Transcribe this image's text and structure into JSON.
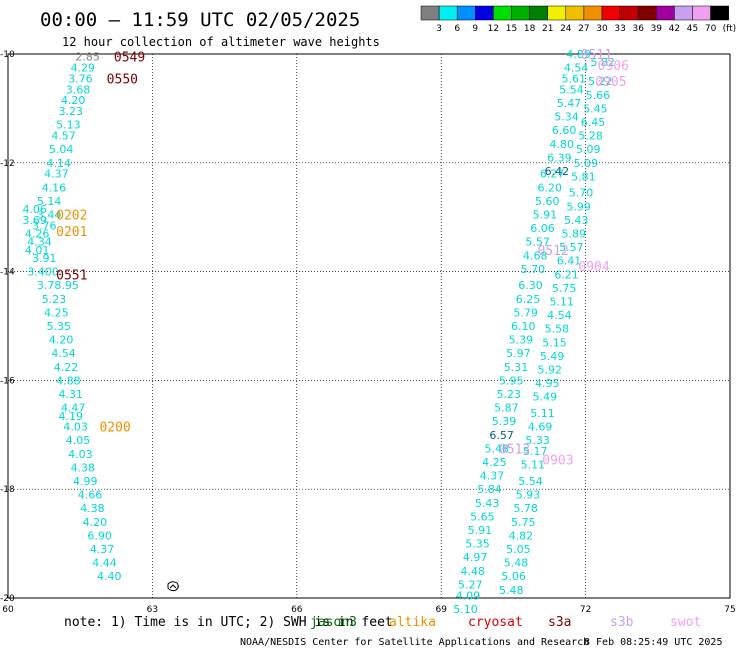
{
  "header": {
    "title": "00:00 — 11:59 UTC 02/05/2025",
    "subtitle": "12 hour collection of altimeter wave heights"
  },
  "colorbar": {
    "unit": "(ft)",
    "colors": [
      "#808080",
      "#00f0f0",
      "#0090ff",
      "#0000e0",
      "#00e000",
      "#00b000",
      "#008000",
      "#f0f000",
      "#f0c000",
      "#f09000",
      "#f00000",
      "#c00000",
      "#800000",
      "#a000a0",
      "#c8a0f0",
      "#f0a0f0",
      "#000000"
    ],
    "labels": [
      "3",
      "6",
      "9",
      "12",
      "15",
      "18",
      "21",
      "24",
      "27",
      "30",
      "33",
      "36",
      "39",
      "42",
      "45",
      "70"
    ]
  },
  "axes": {
    "x_ticks": [
      60,
      63,
      66,
      69,
      72,
      75
    ],
    "y_ticks": [
      -10,
      -12,
      -14,
      -16,
      -18,
      -20
    ],
    "xlim": [
      60,
      75
    ],
    "ylim": [
      -20,
      -10
    ]
  },
  "footer": {
    "note": "note:  1) Time is in UTC;  2) SWH is in feet",
    "credit": "NOAA/NESDIS Center for Satellite Applications and Research",
    "timestamp": "8 Feb 08:25:49 UTC 2025"
  },
  "legend": [
    {
      "name": "jason3",
      "color": "#007000"
    },
    {
      "name": "altika",
      "color": "#f09000"
    },
    {
      "name": "cryosat",
      "color": "#e00000"
    },
    {
      "name": "s3a",
      "color": "#800000"
    },
    {
      "name": "s3b",
      "color": "#c8a0f0"
    },
    {
      "name": "swot",
      "color": "#f0a0f0"
    }
  ],
  "chart_data": {
    "type": "scatter",
    "color_cyan": "#00d8d8",
    "x_range": [
      60,
      75
    ],
    "y_range": [
      -20,
      -10
    ],
    "tracks": [
      {
        "name": "west-track",
        "points": [
          {
            "lon": 61.4,
            "lat": -10.05,
            "value": "2.85",
            "color": "#808080"
          },
          {
            "lon": 61.3,
            "lat": -10.25,
            "value": "4.29"
          },
          {
            "lon": 61.25,
            "lat": -10.45,
            "value": "3.76"
          },
          {
            "lon": 61.2,
            "lat": -10.65,
            "value": "3.68"
          },
          {
            "lon": 61.1,
            "lat": -10.85,
            "value": "4.20"
          },
          {
            "lon": 61.05,
            "lat": -11.05,
            "value": "3.23"
          },
          {
            "lon": 61.0,
            "lat": -11.3,
            "value": "5.13"
          },
          {
            "lon": 60.9,
            "lat": -11.5,
            "value": "4.57"
          },
          {
            "lon": 60.85,
            "lat": -11.75,
            "value": "5.04"
          },
          {
            "lon": 60.8,
            "lat": -12.0,
            "value": "4.14"
          },
          {
            "lon": 60.75,
            "lat": -12.2,
            "value": "4.37"
          },
          {
            "lon": 60.7,
            "lat": -12.45,
            "value": "4.16"
          },
          {
            "lon": 60.6,
            "lat": -12.7,
            "value": "5.14"
          },
          {
            "lon": 60.3,
            "lat": -12.85,
            "value": "4.06"
          },
          {
            "lon": 60.6,
            "lat": -12.95,
            "value": "3.44"
          },
          {
            "lon": 60.3,
            "lat": -13.05,
            "value": "3.69"
          },
          {
            "lon": 60.5,
            "lat": -13.15,
            "value": "3.76"
          },
          {
            "lon": 60.35,
            "lat": -13.3,
            "value": "4.26"
          },
          {
            "lon": 60.4,
            "lat": -13.45,
            "value": "4.34"
          },
          {
            "lon": 60.35,
            "lat": -13.6,
            "value": "4.01"
          },
          {
            "lon": 60.5,
            "lat": -13.75,
            "value": "3.91"
          },
          {
            "lon": 60.4,
            "lat": -14.0,
            "value": "3.400"
          },
          {
            "lon": 60.6,
            "lat": -14.25,
            "value": "3.78.95"
          },
          {
            "lon": 60.7,
            "lat": -14.5,
            "value": "5.23"
          },
          {
            "lon": 60.75,
            "lat": -14.75,
            "value": "4.25"
          },
          {
            "lon": 60.8,
            "lat": -15.0,
            "value": "5.35"
          },
          {
            "lon": 60.85,
            "lat": -15.25,
            "value": "4.20"
          },
          {
            "lon": 60.9,
            "lat": -15.5,
            "value": "4.54"
          },
          {
            "lon": 60.95,
            "lat": -15.75,
            "value": "4.22"
          },
          {
            "lon": 61.0,
            "lat": -16.0,
            "value": "4.88"
          },
          {
            "lon": 61.05,
            "lat": -16.25,
            "value": "4.31"
          },
          {
            "lon": 61.1,
            "lat": -16.5,
            "value": "4.47"
          },
          {
            "lon": 61.05,
            "lat": -16.65,
            "value": "4.19"
          },
          {
            "lon": 61.15,
            "lat": -16.85,
            "value": "4.03"
          },
          {
            "lon": 61.2,
            "lat": -17.1,
            "value": "4.05"
          },
          {
            "lon": 61.25,
            "lat": -17.35,
            "value": "4.03"
          },
          {
            "lon": 61.3,
            "lat": -17.6,
            "value": "4.38"
          },
          {
            "lon": 61.35,
            "lat": -17.85,
            "value": "4.99"
          },
          {
            "lon": 61.45,
            "lat": -18.1,
            "value": "4.66"
          },
          {
            "lon": 61.5,
            "lat": -18.35,
            "value": "4.38"
          },
          {
            "lon": 61.55,
            "lat": -18.6,
            "value": "4.20"
          },
          {
            "lon": 61.65,
            "lat": -18.85,
            "value": "6.90"
          },
          {
            "lon": 61.7,
            "lat": -19.1,
            "value": "4.37"
          },
          {
            "lon": 61.75,
            "lat": -19.35,
            "value": "4.44"
          },
          {
            "lon": 61.85,
            "lat": -19.6,
            "value": "4.40"
          }
        ]
      },
      {
        "name": "east-track-left",
        "points": [
          {
            "lon": 71.05,
            "lat": -12.2,
            "value": "6.27"
          },
          {
            "lon": 71.0,
            "lat": -12.45,
            "value": "6.20"
          },
          {
            "lon": 70.95,
            "lat": -12.7,
            "value": "5.60"
          },
          {
            "lon": 70.9,
            "lat": -12.95,
            "value": "5.91"
          },
          {
            "lon": 70.85,
            "lat": -13.2,
            "value": "6.06"
          },
          {
            "lon": 70.75,
            "lat": -13.45,
            "value": "5.57"
          },
          {
            "lon": 70.7,
            "lat": -13.7,
            "value": "4.68"
          },
          {
            "lon": 70.65,
            "lat": -13.95,
            "value": "5.70"
          },
          {
            "lon": 70.6,
            "lat": -14.25,
            "value": "6.30"
          },
          {
            "lon": 70.55,
            "lat": -14.5,
            "value": "6.25"
          },
          {
            "lon": 70.5,
            "lat": -14.75,
            "value": "5.79"
          },
          {
            "lon": 70.45,
            "lat": -15.0,
            "value": "6.10"
          },
          {
            "lon": 70.4,
            "lat": -15.25,
            "value": "5.39"
          },
          {
            "lon": 70.35,
            "lat": -15.5,
            "value": "5.97"
          },
          {
            "lon": 70.3,
            "lat": -15.75,
            "value": "5.31"
          },
          {
            "lon": 70.2,
            "lat": -16.0,
            "value": "5.95"
          },
          {
            "lon": 70.15,
            "lat": -16.25,
            "value": "5.23"
          },
          {
            "lon": 70.1,
            "lat": -16.5,
            "value": "5.87"
          },
          {
            "lon": 70.05,
            "lat": -16.75,
            "value": "5.39"
          },
          {
            "lon": 70.0,
            "lat": -17.0,
            "value": "6.57",
            "color": "#006090"
          },
          {
            "lon": 69.9,
            "lat": -17.25,
            "value": "5.48"
          },
          {
            "lon": 69.85,
            "lat": -17.5,
            "value": "4.25"
          },
          {
            "lon": 69.8,
            "lat": -17.75,
            "value": "4.37"
          },
          {
            "lon": 69.75,
            "lat": -18.0,
            "value": "5.84"
          },
          {
            "lon": 69.7,
            "lat": -18.25,
            "value": "5.43"
          },
          {
            "lon": 69.6,
            "lat": -18.5,
            "value": "5.65"
          },
          {
            "lon": 69.55,
            "lat": -18.75,
            "value": "5.91"
          },
          {
            "lon": 69.5,
            "lat": -19.0,
            "value": "5.35"
          },
          {
            "lon": 69.45,
            "lat": -19.25,
            "value": "4.97"
          },
          {
            "lon": 69.4,
            "lat": -19.5,
            "value": "4.48"
          },
          {
            "lon": 69.35,
            "lat": -19.75,
            "value": "5.27"
          },
          {
            "lon": 69.3,
            "lat": -19.95,
            "value": "4.09"
          },
          {
            "lon": 69.25,
            "lat": -20.2,
            "value": "5.10"
          }
        ]
      },
      {
        "name": "east-track-right",
        "points": [
          {
            "lon": 71.6,
            "lat": -10.0,
            "value": "4.89"
          },
          {
            "lon": 71.55,
            "lat": -10.25,
            "value": "4.54"
          },
          {
            "lon": 71.5,
            "lat": -10.45,
            "value": "5.61"
          },
          {
            "lon": 71.45,
            "lat": -10.65,
            "value": "5.54"
          },
          {
            "lon": 71.4,
            "lat": -10.9,
            "value": "5.47"
          },
          {
            "lon": 71.35,
            "lat": -11.15,
            "value": "5.34"
          },
          {
            "lon": 71.3,
            "lat": -11.4,
            "value": "6.60"
          },
          {
            "lon": 71.25,
            "lat": -11.65,
            "value": "4.80"
          },
          {
            "lon": 71.2,
            "lat": -11.9,
            "value": "6.39"
          },
          {
            "lon": 71.15,
            "lat": -12.15,
            "value": "6.42",
            "color": "#006090"
          },
          {
            "lon": 72.1,
            "lat": -10.15,
            "value": "5.82"
          },
          {
            "lon": 72.05,
            "lat": -10.5,
            "value": "5.22"
          },
          {
            "lon": 72.0,
            "lat": -10.75,
            "value": "5.66"
          },
          {
            "lon": 71.95,
            "lat": -11.0,
            "value": "5.45"
          },
          {
            "lon": 71.9,
            "lat": -11.25,
            "value": "6.45"
          },
          {
            "lon": 71.85,
            "lat": -11.5,
            "value": "5.28"
          },
          {
            "lon": 71.8,
            "lat": -11.75,
            "value": "5.09"
          },
          {
            "lon": 71.75,
            "lat": -12.0,
            "value": "5.09"
          },
          {
            "lon": 71.7,
            "lat": -12.25,
            "value": "5.81"
          },
          {
            "lon": 71.65,
            "lat": -12.55,
            "value": "5.70"
          },
          {
            "lon": 71.6,
            "lat": -12.8,
            "value": "5.99"
          },
          {
            "lon": 71.55,
            "lat": -13.05,
            "value": "5.43"
          },
          {
            "lon": 71.5,
            "lat": -13.3,
            "value": "5.89"
          },
          {
            "lon": 71.45,
            "lat": -13.55,
            "value": "5.57"
          },
          {
            "lon": 71.4,
            "lat": -13.8,
            "value": "6.41"
          },
          {
            "lon": 71.35,
            "lat": -14.05,
            "value": "6.21"
          },
          {
            "lon": 71.3,
            "lat": -14.3,
            "value": "5.75"
          },
          {
            "lon": 71.25,
            "lat": -14.55,
            "value": "5.11"
          },
          {
            "lon": 71.2,
            "lat": -14.8,
            "value": "4.54"
          },
          {
            "lon": 71.15,
            "lat": -15.05,
            "value": "5.58"
          },
          {
            "lon": 71.1,
            "lat": -15.3,
            "value": "5.15"
          },
          {
            "lon": 71.05,
            "lat": -15.55,
            "value": "5.49"
          },
          {
            "lon": 71.0,
            "lat": -15.8,
            "value": "5.92"
          },
          {
            "lon": 70.95,
            "lat": -16.05,
            "value": "4.95"
          },
          {
            "lon": 70.9,
            "lat": -16.3,
            "value": "5.49"
          },
          {
            "lon": 70.85,
            "lat": -16.6,
            "value": "5.11"
          },
          {
            "lon": 70.8,
            "lat": -16.85,
            "value": "4.69"
          },
          {
            "lon": 70.75,
            "lat": -17.1,
            "value": "5.33"
          },
          {
            "lon": 70.7,
            "lat": -17.3,
            "value": "5.17"
          },
          {
            "lon": 70.65,
            "lat": -17.55,
            "value": "5.11"
          },
          {
            "lon": 70.6,
            "lat": -17.85,
            "value": "5.54"
          },
          {
            "lon": 70.55,
            "lat": -18.1,
            "value": "5.93"
          },
          {
            "lon": 70.5,
            "lat": -18.35,
            "value": "5.78"
          },
          {
            "lon": 70.45,
            "lat": -18.6,
            "value": "5.75"
          },
          {
            "lon": 70.4,
            "lat": -18.85,
            "value": "4.82"
          },
          {
            "lon": 70.35,
            "lat": -19.1,
            "value": "5.05"
          },
          {
            "lon": 70.3,
            "lat": -19.35,
            "value": "5.48"
          },
          {
            "lon": 70.25,
            "lat": -19.6,
            "value": "5.06"
          },
          {
            "lon": 70.2,
            "lat": -19.85,
            "value": "5.48"
          }
        ]
      }
    ],
    "time_labels": [
      {
        "lon": 62.2,
        "lat": -10.05,
        "text": "0549",
        "color": "#800000"
      },
      {
        "lon": 62.05,
        "lat": -10.45,
        "text": "0550",
        "color": "#800000"
      },
      {
        "lon": 61.0,
        "lat": -12.95,
        "text": "0202",
        "color": "#f09000"
      },
      {
        "lon": 61.0,
        "lat": -13.25,
        "text": "0201",
        "color": "#f09000"
      },
      {
        "lon": 61.0,
        "lat": -14.05,
        "text": "0551",
        "color": "#800000"
      },
      {
        "lon": 61.9,
        "lat": -16.85,
        "text": "0200",
        "color": "#f09000"
      },
      {
        "lon": 71.9,
        "lat": -10.0,
        "text": "0511",
        "color": "#c8a0f0"
      },
      {
        "lon": 72.25,
        "lat": -10.2,
        "text": "0906",
        "color": "#f0a0f0"
      },
      {
        "lon": 72.2,
        "lat": -10.5,
        "text": "0905",
        "color": "#f0a0f0"
      },
      {
        "lon": 71.0,
        "lat": -13.6,
        "text": "0512",
        "color": "#c8a0f0"
      },
      {
        "lon": 71.85,
        "lat": -13.9,
        "text": "0904",
        "color": "#f0a0f0"
      },
      {
        "lon": 70.2,
        "lat": -17.25,
        "text": "0513",
        "color": "#c8a0f0"
      },
      {
        "lon": 71.1,
        "lat": -17.45,
        "text": "0903",
        "color": "#f0a0f0"
      }
    ]
  }
}
